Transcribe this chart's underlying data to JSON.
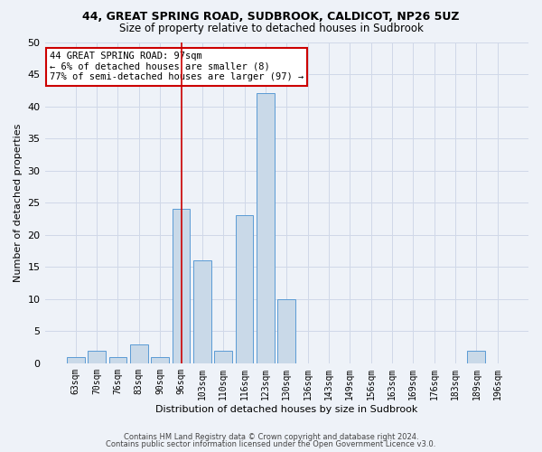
{
  "title1": "44, GREAT SPRING ROAD, SUDBROOK, CALDICOT, NP26 5UZ",
  "title2": "Size of property relative to detached houses in Sudbrook",
  "xlabel": "Distribution of detached houses by size in Sudbrook",
  "ylabel": "Number of detached properties",
  "categories": [
    "63sqm",
    "70sqm",
    "76sqm",
    "83sqm",
    "90sqm",
    "96sqm",
    "103sqm",
    "110sqm",
    "116sqm",
    "123sqm",
    "130sqm",
    "136sqm",
    "143sqm",
    "149sqm",
    "156sqm",
    "163sqm",
    "169sqm",
    "176sqm",
    "183sqm",
    "189sqm",
    "196sqm"
  ],
  "values": [
    1,
    2,
    1,
    3,
    1,
    24,
    16,
    2,
    23,
    42,
    10,
    0,
    0,
    0,
    0,
    0,
    0,
    0,
    0,
    2,
    0
  ],
  "bar_color": "#c9d9e8",
  "bar_edge_color": "#5b9bd5",
  "grid_color": "#d0d8e8",
  "vline_x_index": 5,
  "vline_color": "#cc0000",
  "annotation_text": "44 GREAT SPRING ROAD: 97sqm\n← 6% of detached houses are smaller (8)\n77% of semi-detached houses are larger (97) →",
  "annotation_box_color": "white",
  "annotation_box_edge": "#cc0000",
  "ylim": [
    0,
    50
  ],
  "yticks": [
    0,
    5,
    10,
    15,
    20,
    25,
    30,
    35,
    40,
    45,
    50
  ],
  "footnote1": "Contains HM Land Registry data © Crown copyright and database right 2024.",
  "footnote2": "Contains public sector information licensed under the Open Government Licence v3.0.",
  "bg_color": "#eef2f8",
  "title1_fontsize": 9,
  "title2_fontsize": 8.5,
  "ylabel_fontsize": 8,
  "xlabel_fontsize": 8,
  "tick_fontsize": 7,
  "annot_fontsize": 7.5,
  "footnote_fontsize": 6
}
